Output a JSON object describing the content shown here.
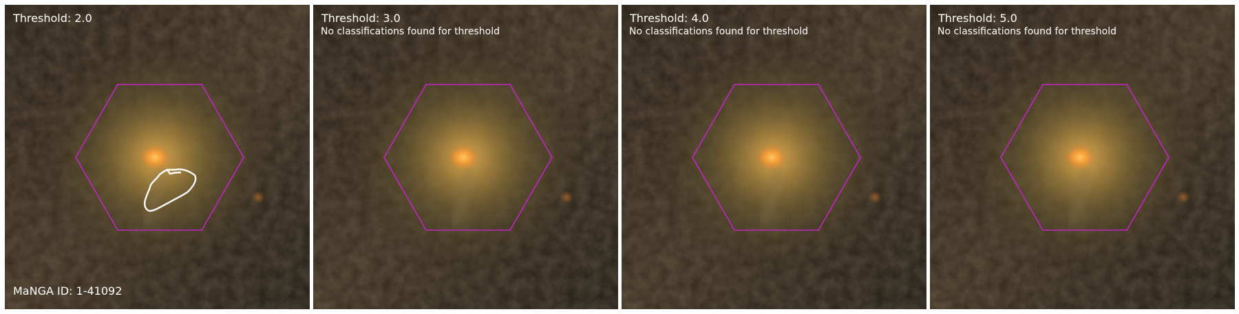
{
  "manga_id": "MaNGA ID: 1-41092",
  "colors": {
    "hexagon": "#c026c4",
    "contour": "#ffffff",
    "text": "#ffffff",
    "core": "#ffb040"
  },
  "panels": [
    {
      "threshold": "Threshold: 2.0",
      "note": "",
      "has_contour": true
    },
    {
      "threshold": "Threshold: 3.0",
      "note": "No classifications found for threshold",
      "has_contour": false
    },
    {
      "threshold": "Threshold: 4.0",
      "note": "No classifications found for threshold",
      "has_contour": false
    },
    {
      "threshold": "Threshold: 5.0",
      "note": "No classifications found for threshold",
      "has_contour": false
    }
  ]
}
